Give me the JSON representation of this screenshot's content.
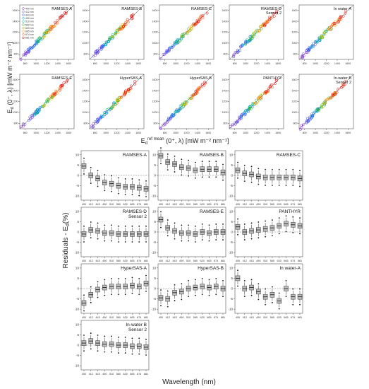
{
  "scatter_grid": {
    "y_axis_label": "E",
    "y_axis_label_sub": "d",
    "y_axis_label_rest": " (0⁻, λ) [mW m⁻² nm⁻¹]",
    "x_axis_label": "E",
    "x_axis_label_sub": "d",
    "x_axis_label_sup": "ref mean",
    "x_axis_label_rest": " (0⁺, λ) [mW m⁻² nm⁻¹]",
    "x_ticks": [
      "800",
      "1000",
      "1200",
      "1400",
      "1600"
    ],
    "y_ticks": [
      "800",
      "1000",
      "1200",
      "1400",
      "1600"
    ],
    "legend_wavelengths": [
      "400 nm",
      "412 nm",
      "443 nm",
      "490 nm",
      "510 nm",
      "560 nm",
      "620 nm",
      "665 nm",
      "674 nm",
      "681 nm"
    ],
    "colors": [
      "#8a2be2",
      "#6a5acd",
      "#1e50ff",
      "#00a0e0",
      "#00b0a0",
      "#20b020",
      "#c0c000",
      "#ff8c00",
      "#ff5020",
      "#e00000"
    ]
  },
  "residual_grid": {
    "y_axis_label": "Residuals - E",
    "y_axis_label_sub": "d",
    "y_axis_label_rest": "(%)",
    "x_axis_label": "Wavelength (nm)",
    "y_ticks": [
      "10",
      "5",
      "0",
      "-5",
      "-10"
    ],
    "x_ticks": [
      "400",
      "412",
      "443",
      "490",
      "510",
      "560",
      "620",
      "665",
      "674",
      "681"
    ]
  },
  "chart_data": [
    {
      "type": "scatter",
      "xlim": [
        700,
        1700
      ],
      "ylim": [
        700,
        1700
      ],
      "panels": [
        {
          "title": "RAMSES-A"
        },
        {
          "title": "RAMSES-B"
        },
        {
          "title": "RAMSES-C"
        },
        {
          "title": "RAMSES-D",
          "title2": "Sensor 2"
        },
        {
          "title": "In water-A"
        },
        {
          "title": "RAMSES-E"
        },
        {
          "title": "HyperSAS-A"
        },
        {
          "title": "HyperSAS-B"
        },
        {
          "title": "PANTHYR"
        },
        {
          "title": "In-water B",
          "title2": "Sensor 2"
        }
      ]
    },
    {
      "type": "box",
      "ylim": [
        -12,
        12
      ],
      "panels": [
        {
          "title": "RAMSES-A",
          "medians": [
            4.5,
            0,
            -1.5,
            -3.5,
            -4,
            -5,
            -5.5,
            -5.5,
            -6,
            -6.5
          ]
        },
        {
          "title": "RAMSES-B",
          "medians": [
            9.5,
            6.5,
            5.5,
            4,
            3.5,
            2.5,
            3,
            3,
            3,
            1.5
          ]
        },
        {
          "title": "RAMSES-C",
          "medians": [
            2.5,
            1,
            0.5,
            -0.5,
            -1,
            -1,
            -1,
            -1,
            -1,
            -1.5
          ]
        },
        {
          "title": "RAMSES-D",
          "title2": "Sensor 2",
          "medians": [
            -1,
            1,
            0.5,
            -0.5,
            -0.5,
            -1,
            -1,
            -1,
            -1,
            -1
          ]
        },
        {
          "title": "RAMSES-E",
          "medians": [
            6,
            2,
            0.5,
            -0.5,
            -0.5,
            -1,
            0,
            -0.5,
            0,
            0
          ]
        },
        {
          "title": "PANTHYR",
          "medians": [
            2.5,
            0,
            0.5,
            1,
            1.5,
            2,
            3,
            4,
            3.5,
            3
          ]
        },
        {
          "title": "HyperSAS-A",
          "medians": [
            -7,
            -3,
            -0.5,
            0.5,
            1,
            1,
            1,
            1.5,
            1,
            2.5
          ]
        },
        {
          "title": "HyperSAS-B",
          "medians": [
            -4.5,
            -5,
            -2,
            -1.5,
            0,
            0.5,
            1,
            0.5,
            1,
            0
          ]
        },
        {
          "title": "In water-A",
          "medians": [
            5,
            0,
            0.5,
            -1.5,
            -4,
            -3,
            -6,
            0,
            -4,
            -4
          ]
        },
        {
          "title": "In-water B",
          "title2": "Sensor 2",
          "medians": [
            1,
            2,
            1,
            0.5,
            0.5,
            0,
            0,
            -0.5,
            -0.5,
            -1
          ]
        }
      ]
    }
  ]
}
